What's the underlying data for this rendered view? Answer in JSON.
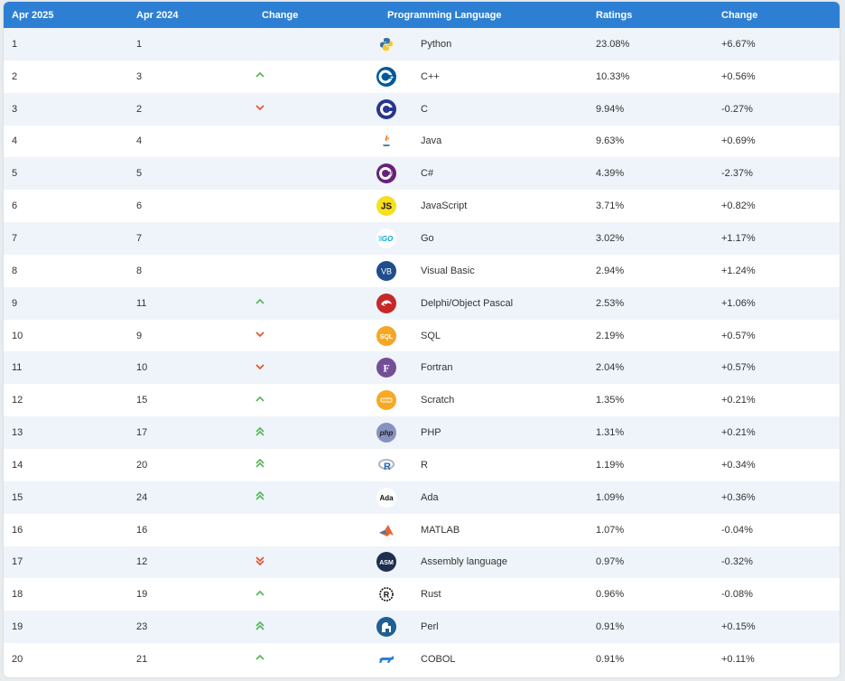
{
  "headers": [
    "Apr 2025",
    "Apr 2024",
    "Change",
    "Programming Language",
    "Ratings",
    "Change"
  ],
  "colors": {
    "header_bg": "#2d7fd3",
    "row_alt_bg": "#eef4fa",
    "up_arrow": "#5cb85c",
    "down_arrow": "#e4572e"
  },
  "rows": [
    {
      "rank": "1",
      "prev": "1",
      "trend": "none",
      "lang": "Python",
      "rating": "23.08%",
      "change": "+6.67%",
      "icon": "python-icon"
    },
    {
      "rank": "2",
      "prev": "3",
      "trend": "up",
      "lang": "C++",
      "rating": "10.33%",
      "change": "+0.56%",
      "icon": "cpp-icon"
    },
    {
      "rank": "3",
      "prev": "2",
      "trend": "down",
      "lang": "C",
      "rating": "9.94%",
      "change": "-0.27%",
      "icon": "c-icon"
    },
    {
      "rank": "4",
      "prev": "4",
      "trend": "none",
      "lang": "Java",
      "rating": "9.63%",
      "change": "+0.69%",
      "icon": "java-icon"
    },
    {
      "rank": "5",
      "prev": "5",
      "trend": "none",
      "lang": "C#",
      "rating": "4.39%",
      "change": "-2.37%",
      "icon": "csharp-icon"
    },
    {
      "rank": "6",
      "prev": "6",
      "trend": "none",
      "lang": "JavaScript",
      "rating": "3.71%",
      "change": "+0.82%",
      "icon": "javascript-icon"
    },
    {
      "rank": "7",
      "prev": "7",
      "trend": "none",
      "lang": "Go",
      "rating": "3.02%",
      "change": "+1.17%",
      "icon": "go-icon"
    },
    {
      "rank": "8",
      "prev": "8",
      "trend": "none",
      "lang": "Visual Basic",
      "rating": "2.94%",
      "change": "+1.24%",
      "icon": "visual-basic-icon"
    },
    {
      "rank": "9",
      "prev": "11",
      "trend": "up",
      "lang": "Delphi/Object Pascal",
      "rating": "2.53%",
      "change": "+1.06%",
      "icon": "delphi-icon"
    },
    {
      "rank": "10",
      "prev": "9",
      "trend": "down",
      "lang": "SQL",
      "rating": "2.19%",
      "change": "+0.57%",
      "icon": "sql-icon"
    },
    {
      "rank": "11",
      "prev": "10",
      "trend": "down",
      "lang": "Fortran",
      "rating": "2.04%",
      "change": "+0.57%",
      "icon": "fortran-icon"
    },
    {
      "rank": "12",
      "prev": "15",
      "trend": "up",
      "lang": "Scratch",
      "rating": "1.35%",
      "change": "+0.21%",
      "icon": "scratch-icon"
    },
    {
      "rank": "13",
      "prev": "17",
      "trend": "up2",
      "lang": "PHP",
      "rating": "1.31%",
      "change": "+0.21%",
      "icon": "php-icon"
    },
    {
      "rank": "14",
      "prev": "20",
      "trend": "up2",
      "lang": "R",
      "rating": "1.19%",
      "change": "+0.34%",
      "icon": "r-icon"
    },
    {
      "rank": "15",
      "prev": "24",
      "trend": "up2",
      "lang": "Ada",
      "rating": "1.09%",
      "change": "+0.36%",
      "icon": "ada-icon"
    },
    {
      "rank": "16",
      "prev": "16",
      "trend": "none",
      "lang": "MATLAB",
      "rating": "1.07%",
      "change": "-0.04%",
      "icon": "matlab-icon"
    },
    {
      "rank": "17",
      "prev": "12",
      "trend": "down2",
      "lang": "Assembly language",
      "rating": "0.97%",
      "change": "-0.32%",
      "icon": "assembly-icon"
    },
    {
      "rank": "18",
      "prev": "19",
      "trend": "up",
      "lang": "Rust",
      "rating": "0.96%",
      "change": "-0.08%",
      "icon": "rust-icon"
    },
    {
      "rank": "19",
      "prev": "23",
      "trend": "up2",
      "lang": "Perl",
      "rating": "0.91%",
      "change": "+0.15%",
      "icon": "perl-icon"
    },
    {
      "rank": "20",
      "prev": "21",
      "trend": "up",
      "lang": "COBOL",
      "rating": "0.91%",
      "change": "+0.11%",
      "icon": "cobol-icon"
    }
  ],
  "logo_text": {
    "js": "JS",
    "go": "GO",
    "vb": "VB",
    "sql": "SQL",
    "fortran": "F",
    "php": "php",
    "r": "R",
    "ada": "Ada",
    "asm": "ASM",
    "rust": "R"
  }
}
